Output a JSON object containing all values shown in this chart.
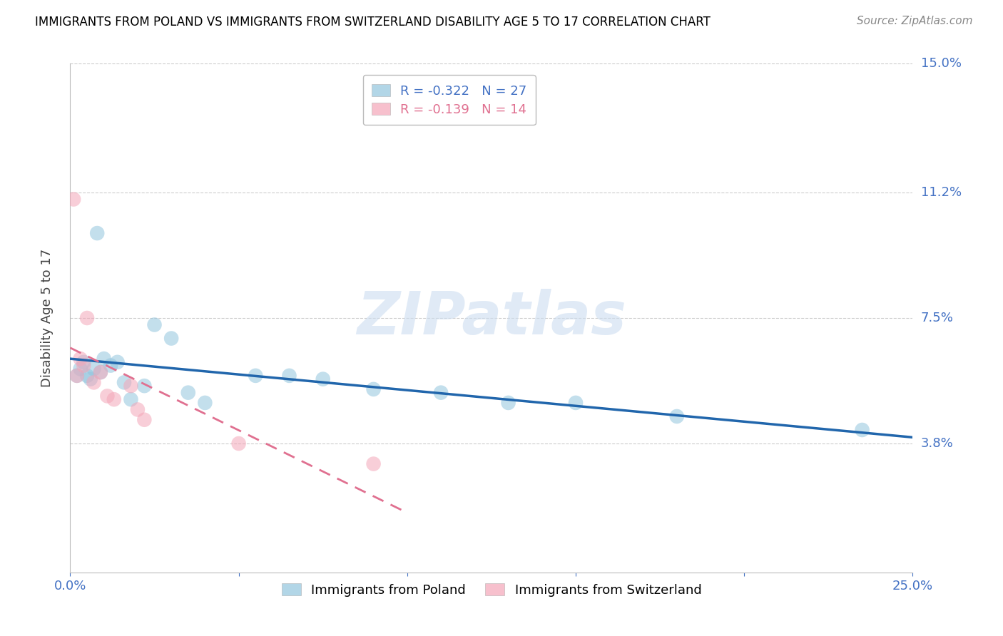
{
  "title": "IMMIGRANTS FROM POLAND VS IMMIGRANTS FROM SWITZERLAND DISABILITY AGE 5 TO 17 CORRELATION CHART",
  "source": "Source: ZipAtlas.com",
  "ylabel": "Disability Age 5 to 17",
  "xlim": [
    0.0,
    0.25
  ],
  "ylim": [
    0.0,
    0.15
  ],
  "yticks": [
    0.038,
    0.075,
    0.112,
    0.15
  ],
  "ytick_labels": [
    "3.8%",
    "7.5%",
    "11.2%",
    "15.0%"
  ],
  "poland_R": -0.322,
  "poland_N": 27,
  "swiss_R": -0.139,
  "swiss_N": 14,
  "poland_color": "#92c5de",
  "swiss_color": "#f4a6b8",
  "trend_poland_color": "#2166ac",
  "trend_swiss_color": "#e07090",
  "poland_x": [
    0.002,
    0.003,
    0.004,
    0.005,
    0.006,
    0.007,
    0.008,
    0.009,
    0.01,
    0.012,
    0.014,
    0.016,
    0.018,
    0.022,
    0.025,
    0.03,
    0.035,
    0.04,
    0.055,
    0.065,
    0.075,
    0.09,
    0.11,
    0.13,
    0.15,
    0.18,
    0.235
  ],
  "poland_y": [
    0.058,
    0.06,
    0.062,
    0.058,
    0.057,
    0.06,
    0.1,
    0.059,
    0.063,
    0.061,
    0.062,
    0.056,
    0.051,
    0.055,
    0.073,
    0.069,
    0.053,
    0.05,
    0.058,
    0.058,
    0.057,
    0.054,
    0.053,
    0.05,
    0.05,
    0.046,
    0.042
  ],
  "swiss_x": [
    0.001,
    0.002,
    0.003,
    0.004,
    0.005,
    0.007,
    0.009,
    0.011,
    0.013,
    0.018,
    0.02,
    0.022,
    0.05,
    0.09
  ],
  "swiss_y": [
    0.11,
    0.058,
    0.063,
    0.061,
    0.075,
    0.056,
    0.059,
    0.052,
    0.051,
    0.055,
    0.048,
    0.045,
    0.038,
    0.032
  ],
  "background_color": "#ffffff",
  "grid_color": "#cccccc",
  "label_color": "#4472c4",
  "title_color": "#000000",
  "legend_R_poland_color": "#4472c4",
  "legend_R_swiss_color": "#e07090"
}
